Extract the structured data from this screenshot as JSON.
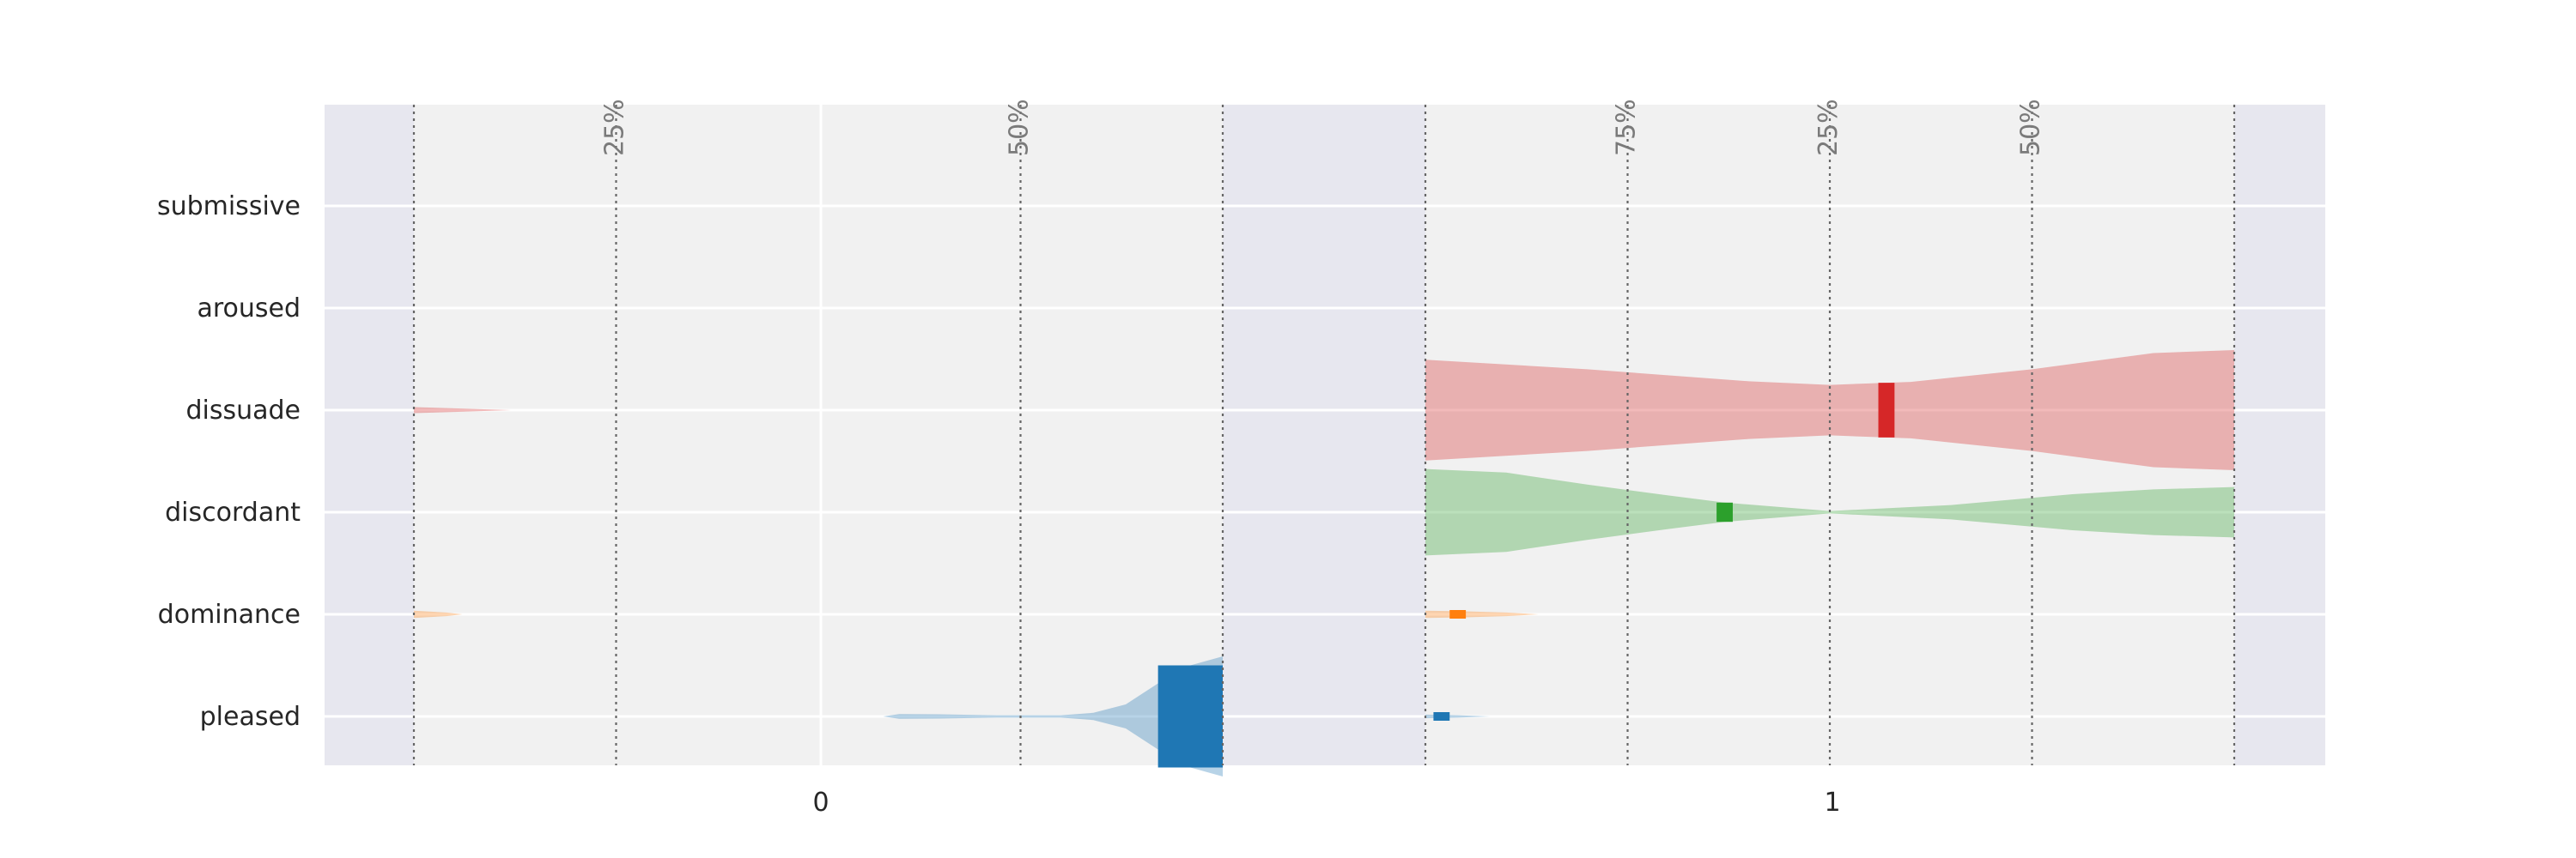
{
  "chart_data": {
    "type": "violin",
    "categories": [
      "submissive",
      "aroused",
      "dissuade",
      "discordant",
      "dominance",
      "pleased"
    ],
    "x_tick_labels": [
      "0",
      "1"
    ],
    "percent_labels": [
      "25%",
      "50%",
      "75%"
    ],
    "panels": [
      {
        "name": "0",
        "range": [
          0,
          1
        ],
        "series": [
          {
            "category": "dissuade",
            "color": "#d62728",
            "median": 0.01,
            "profile": [
              [
                0.0,
                0.05
              ],
              [
                0.05,
                0.03
              ],
              [
                0.12,
                0.0
              ]
            ]
          },
          {
            "category": "dominance",
            "color": "#ff7f0e",
            "median": 0.02,
            "profile": [
              [
                0.0,
                0.06
              ],
              [
                0.04,
                0.03
              ],
              [
                0.06,
                0.0
              ]
            ]
          },
          {
            "category": "pleased",
            "color": "#1f77b4",
            "median": 0.96,
            "box": [
              0.92,
              1.0
            ],
            "profile": [
              [
                0.58,
                0.0
              ],
              [
                0.6,
                0.04
              ],
              [
                0.65,
                0.035
              ],
              [
                0.72,
                0.02
              ],
              [
                0.8,
                0.02
              ],
              [
                0.84,
                0.06
              ],
              [
                0.88,
                0.2
              ],
              [
                0.92,
                0.55
              ],
              [
                0.96,
                0.85
              ],
              [
                1.0,
                1.0
              ]
            ]
          }
        ]
      },
      {
        "name": "1",
        "range": [
          0,
          1
        ],
        "series": [
          {
            "category": "dissuade",
            "color": "#d62728",
            "median": 0.57,
            "box": [
              0.56,
              0.58
            ],
            "profile": [
              [
                0.0,
                0.84
              ],
              [
                0.2,
                0.68
              ],
              [
                0.4,
                0.48
              ],
              [
                0.5,
                0.42
              ],
              [
                0.6,
                0.47
              ],
              [
                0.75,
                0.68
              ],
              [
                0.9,
                0.95
              ],
              [
                1.0,
                1.0
              ]
            ]
          },
          {
            "category": "discordant",
            "color": "#2ca02c",
            "median": 0.37,
            "box": [
              0.36,
              0.38
            ],
            "profile": [
              [
                0.0,
                0.72
              ],
              [
                0.1,
                0.66
              ],
              [
                0.2,
                0.46
              ],
              [
                0.3,
                0.28
              ],
              [
                0.37,
                0.16
              ],
              [
                0.5,
                0.02
              ],
              [
                0.65,
                0.12
              ],
              [
                0.8,
                0.3
              ],
              [
                0.9,
                0.38
              ],
              [
                1.0,
                0.42
              ]
            ]
          },
          {
            "category": "dominance",
            "color": "#ff7f0e",
            "median": 0.04,
            "box": [
              0.03,
              0.05
            ],
            "profile": [
              [
                0.0,
                0.06
              ],
              [
                0.05,
                0.05
              ],
              [
                0.1,
                0.03
              ],
              [
                0.14,
                0.0
              ]
            ]
          },
          {
            "category": "pleased",
            "color": "#1f77b4",
            "median": 0.02,
            "box": [
              0.01,
              0.03
            ],
            "profile": [
              [
                0.0,
                0.03
              ],
              [
                0.04,
                0.02
              ],
              [
                0.08,
                0.0
              ]
            ]
          }
        ]
      }
    ],
    "colors": {
      "plot_bg": "#f1f1f1",
      "outer_bg": "#e7e7ef",
      "grid": "#ffffff",
      "divider": "#666666"
    },
    "grid": true,
    "legend": "none"
  }
}
